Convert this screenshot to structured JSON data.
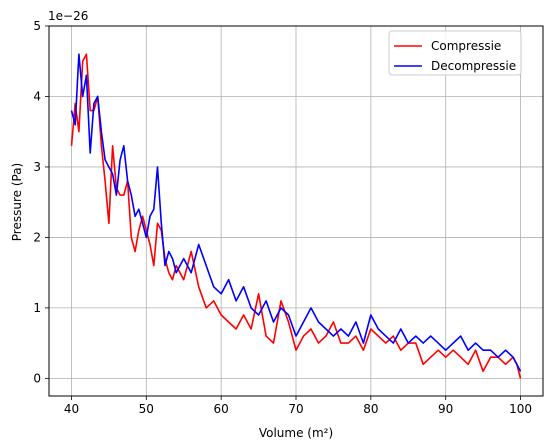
{
  "chart_data": {
    "type": "line",
    "xlabel": "Volume (m²)",
    "ylabel": "Pressure (Pa)",
    "offset_label": "1e−26",
    "xlim": [
      37,
      103
    ],
    "ylim": [
      -0.25,
      5
    ],
    "xticks": [
      40,
      50,
      60,
      70,
      80,
      90,
      100
    ],
    "yticks": [
      0,
      1,
      2,
      3,
      4,
      5
    ],
    "grid": true,
    "legend_position": "top-right",
    "series": [
      {
        "name": "Compressie",
        "color": "#ff0000",
        "x": [
          40.0,
          40.5,
          41.0,
          41.5,
          42.0,
          42.5,
          43.0,
          43.5,
          44.0,
          44.5,
          45.0,
          45.5,
          46.0,
          46.5,
          47.0,
          47.5,
          48.0,
          48.5,
          49.0,
          49.5,
          50.0,
          50.5,
          51.0,
          51.5,
          52.0,
          52.5,
          53.0,
          53.5,
          54.0,
          55.0,
          56.0,
          57.0,
          58.0,
          59.0,
          60.0,
          61.0,
          62.0,
          63.0,
          64.0,
          65.0,
          66.0,
          67.0,
          68.0,
          69.0,
          70.0,
          71.0,
          72.0,
          73.0,
          74.0,
          75.0,
          76.0,
          77.0,
          78.0,
          79.0,
          80.0,
          81.0,
          82.0,
          83.0,
          84.0,
          85.0,
          86.0,
          87.0,
          88.0,
          89.0,
          90.0,
          91.0,
          92.0,
          93.0,
          94.0,
          95.0,
          96.0,
          97.0,
          98.0,
          99.0,
          99.5,
          100.0
        ],
        "y": [
          3.3,
          3.9,
          3.5,
          4.5,
          4.6,
          3.8,
          3.8,
          4.0,
          3.3,
          2.8,
          2.2,
          3.3,
          2.7,
          2.6,
          2.6,
          2.8,
          2.0,
          1.8,
          2.1,
          2.3,
          2.1,
          1.9,
          1.6,
          2.2,
          2.1,
          1.7,
          1.5,
          1.4,
          1.6,
          1.4,
          1.8,
          1.3,
          1.0,
          1.1,
          0.9,
          0.8,
          0.7,
          0.9,
          0.7,
          1.2,
          0.6,
          0.5,
          1.1,
          0.8,
          0.4,
          0.6,
          0.7,
          0.5,
          0.6,
          0.8,
          0.5,
          0.5,
          0.6,
          0.4,
          0.7,
          0.6,
          0.5,
          0.6,
          0.4,
          0.5,
          0.5,
          0.2,
          0.3,
          0.4,
          0.3,
          0.4,
          0.3,
          0.2,
          0.4,
          0.1,
          0.3,
          0.3,
          0.2,
          0.3,
          0.2,
          0.0
        ]
      },
      {
        "name": "Decompressie",
        "color": "#0000ff",
        "x": [
          40.0,
          40.5,
          41.0,
          41.5,
          42.0,
          42.5,
          43.0,
          43.5,
          44.0,
          44.5,
          45.0,
          45.5,
          46.0,
          46.5,
          47.0,
          47.5,
          48.0,
          48.5,
          49.0,
          49.5,
          50.0,
          50.5,
          51.0,
          51.5,
          52.0,
          52.5,
          53.0,
          53.5,
          54.0,
          55.0,
          56.0,
          57.0,
          58.0,
          59.0,
          60.0,
          61.0,
          62.0,
          63.0,
          64.0,
          65.0,
          66.0,
          67.0,
          68.0,
          69.0,
          70.0,
          71.0,
          72.0,
          73.0,
          74.0,
          75.0,
          76.0,
          77.0,
          78.0,
          79.0,
          80.0,
          81.0,
          82.0,
          83.0,
          84.0,
          85.0,
          86.0,
          87.0,
          88.0,
          89.0,
          90.0,
          91.0,
          92.0,
          93.0,
          94.0,
          95.0,
          96.0,
          97.0,
          98.0,
          99.0,
          99.5,
          100.0
        ],
        "y": [
          3.8,
          3.6,
          4.6,
          4.0,
          4.3,
          3.2,
          3.9,
          4.0,
          3.5,
          3.1,
          3.0,
          2.9,
          2.6,
          3.1,
          3.3,
          2.8,
          2.6,
          2.3,
          2.4,
          2.2,
          2.0,
          2.3,
          2.4,
          3.0,
          2.2,
          1.6,
          1.8,
          1.7,
          1.5,
          1.7,
          1.5,
          1.9,
          1.6,
          1.3,
          1.2,
          1.4,
          1.1,
          1.3,
          1.0,
          0.9,
          1.1,
          0.8,
          1.0,
          0.9,
          0.6,
          0.8,
          1.0,
          0.8,
          0.7,
          0.6,
          0.7,
          0.6,
          0.8,
          0.5,
          0.9,
          0.7,
          0.6,
          0.5,
          0.7,
          0.5,
          0.6,
          0.5,
          0.6,
          0.5,
          0.4,
          0.5,
          0.6,
          0.4,
          0.5,
          0.4,
          0.4,
          0.3,
          0.4,
          0.3,
          0.2,
          0.1
        ]
      }
    ]
  }
}
